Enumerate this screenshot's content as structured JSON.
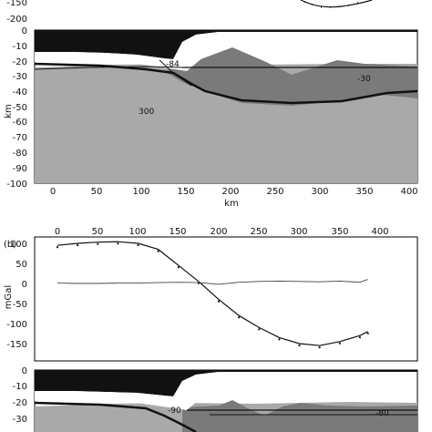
{
  "colors": {
    "black_layer": "#111111",
    "crust_gray": "#a9a9a9",
    "dark_gray": "#7a7a7a",
    "white": "#ffffff",
    "axis": "#000000"
  },
  "panel_a": {
    "ylabel": "km",
    "xlabel": "km",
    "y_ticks": [
      "-150",
      "-200",
      "0",
      "-10",
      "-20",
      "-30",
      "-40",
      "-50",
      "-60",
      "-70",
      "-80",
      "-90",
      "-100"
    ],
    "x_ticks": [
      "0",
      "50",
      "100",
      "150",
      "200",
      "250",
      "300",
      "350",
      "400"
    ],
    "annotations": {
      "a84": "-84",
      "a30": "-30",
      "a300": "300"
    }
  },
  "panel_b": {
    "tag": "(b)",
    "ylabel": "mGal",
    "x_ticks_top": [
      "0",
      "50",
      "100",
      "150",
      "200",
      "250",
      "300",
      "350",
      "400"
    ],
    "y_ticks": [
      "100",
      "50",
      "0",
      "-50",
      "-100",
      "-150"
    ],
    "model_y_ticks": [
      "0",
      "-10",
      "-20",
      "-30"
    ],
    "annotations": {
      "a90": "-90",
      "a80": "-80"
    }
  },
  "chart_data": {
    "type": "line",
    "x": [
      0,
      25,
      50,
      75,
      100,
      125,
      150,
      175,
      200,
      225,
      250,
      275,
      300,
      325,
      350,
      375,
      385
    ],
    "series": [
      {
        "values": [
          95,
          100,
          103,
          104,
          100,
          85,
          45,
          5,
          -40,
          -80,
          -110,
          -135,
          -150,
          -155,
          -145,
          -130,
          -120
        ]
      },
      {
        "values": [
          1,
          0,
          0,
          1,
          1,
          2,
          3,
          2,
          -2,
          3,
          5,
          6,
          5,
          4,
          6,
          3,
          10
        ]
      }
    ],
    "xlabel": "",
    "ylabel": "mGal",
    "xlim": [
      -20,
      420
    ],
    "ylim": [
      -170,
      105
    ]
  }
}
